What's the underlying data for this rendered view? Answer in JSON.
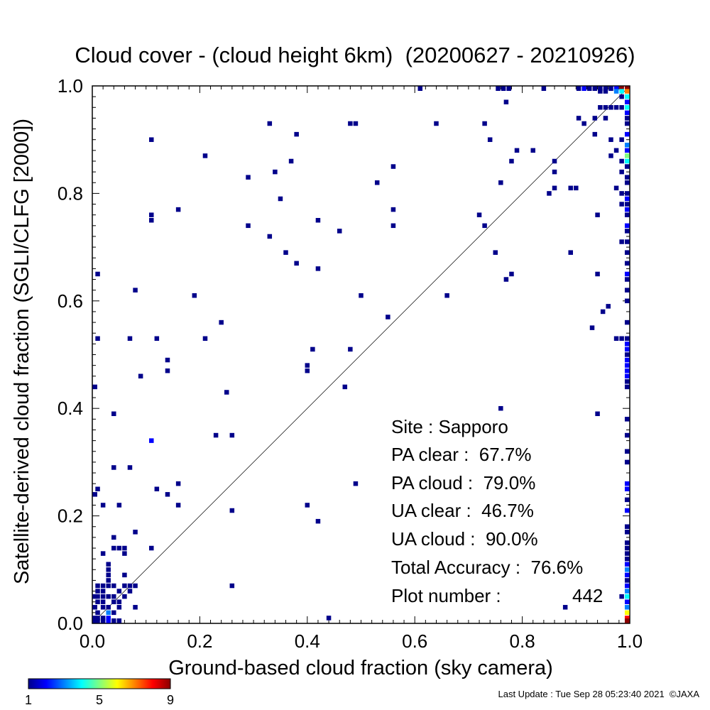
{
  "chart_data": {
    "type": "heatmap",
    "title": "Cloud cover - (cloud height 6km)  (20200627 - 20210926)",
    "xlabel": "Ground-based cloud fraction (sky camera)",
    "ylabel": "Satellite-derived cloud fraction (SGLI/CLFG [2000])",
    "xlim": [
      0.0,
      1.0
    ],
    "ylim": [
      0.0,
      1.0
    ],
    "x_ticks": [
      "0.0",
      "0.2",
      "0.4",
      "0.6",
      "0.8",
      "1.0"
    ],
    "y_ticks": [
      "0.0",
      "0.2",
      "0.4",
      "0.6",
      "0.8",
      "1.0"
    ],
    "diagonal_line": true,
    "colorbar": {
      "min": 1,
      "max": 9,
      "tick_labels": [
        "1",
        "5",
        "9"
      ],
      "colors": [
        "#00008b",
        "#0000ff",
        "#0080ff",
        "#00ffff",
        "#80ff80",
        "#ffff00",
        "#ff8000",
        "#ff0000",
        "#8b0000"
      ]
    },
    "stats": {
      "site": "Site : Sapporo",
      "pa_clear": "PA clear :  67.7%",
      "pa_cloud": "PA cloud :  79.0%",
      "ua_clear": "UA clear :  46.7%",
      "ua_cloud": "UA cloud :  90.0%",
      "total_accuracy": "Total Accuracy :  76.6%",
      "plot_number_label": "Plot number :",
      "plot_number_value": "442"
    },
    "points": [
      {
        "x": 0.61,
        "y": 1.0,
        "c": 1
      },
      {
        "x": 0.755,
        "y": 1.0,
        "c": 1
      },
      {
        "x": 0.765,
        "y": 1.0,
        "c": 1
      },
      {
        "x": 0.775,
        "y": 1.0,
        "c": 1
      },
      {
        "x": 0.84,
        "y": 1.0,
        "c": 1
      },
      {
        "x": 0.905,
        "y": 1.0,
        "c": 1
      },
      {
        "x": 0.915,
        "y": 1.0,
        "c": 2
      },
      {
        "x": 0.925,
        "y": 1.0,
        "c": 1
      },
      {
        "x": 0.935,
        "y": 1.0,
        "c": 1
      },
      {
        "x": 0.945,
        "y": 1.0,
        "c": 1
      },
      {
        "x": 0.955,
        "y": 1.0,
        "c": 1
      },
      {
        "x": 0.965,
        "y": 1.0,
        "c": 1
      },
      {
        "x": 0.975,
        "y": 1.0,
        "c": 2
      },
      {
        "x": 0.985,
        "y": 1.0,
        "c": 9
      },
      {
        "x": 0.995,
        "y": 1.0,
        "c": 9
      },
      {
        "x": 0.975,
        "y": 0.99,
        "c": 3
      },
      {
        "x": 0.985,
        "y": 0.99,
        "c": 4
      },
      {
        "x": 0.995,
        "y": 0.99,
        "c": 7
      },
      {
        "x": 0.945,
        "y": 0.99,
        "c": 1
      },
      {
        "x": 0.955,
        "y": 0.99,
        "c": 1
      },
      {
        "x": 0.995,
        "y": 0.98,
        "c": 4
      },
      {
        "x": 0.985,
        "y": 0.98,
        "c": 1
      },
      {
        "x": 0.995,
        "y": 0.97,
        "c": 2
      },
      {
        "x": 0.995,
        "y": 0.96,
        "c": 4
      },
      {
        "x": 0.985,
        "y": 0.96,
        "c": 1
      },
      {
        "x": 0.975,
        "y": 0.96,
        "c": 1
      },
      {
        "x": 0.965,
        "y": 0.96,
        "c": 1
      },
      {
        "x": 0.955,
        "y": 0.96,
        "c": 1
      },
      {
        "x": 0.945,
        "y": 0.96,
        "c": 1
      },
      {
        "x": 0.77,
        "y": 0.97,
        "c": 1
      },
      {
        "x": 0.995,
        "y": 0.95,
        "c": 2
      },
      {
        "x": 0.995,
        "y": 0.94,
        "c": 1
      },
      {
        "x": 0.905,
        "y": 0.94,
        "c": 1
      },
      {
        "x": 0.935,
        "y": 0.94,
        "c": 1
      },
      {
        "x": 0.955,
        "y": 0.94,
        "c": 1
      },
      {
        "x": 0.915,
        "y": 0.93,
        "c": 1
      },
      {
        "x": 0.995,
        "y": 0.93,
        "c": 1
      },
      {
        "x": 0.935,
        "y": 0.91,
        "c": 1
      },
      {
        "x": 0.995,
        "y": 0.91,
        "c": 2
      },
      {
        "x": 0.965,
        "y": 0.9,
        "c": 1
      },
      {
        "x": 0.985,
        "y": 0.9,
        "c": 1
      },
      {
        "x": 0.995,
        "y": 0.89,
        "c": 3
      },
      {
        "x": 0.975,
        "y": 0.88,
        "c": 1
      },
      {
        "x": 0.995,
        "y": 0.88,
        "c": 2
      },
      {
        "x": 0.965,
        "y": 0.87,
        "c": 1
      },
      {
        "x": 0.995,
        "y": 0.87,
        "c": 5
      },
      {
        "x": 0.995,
        "y": 0.86,
        "c": 4
      },
      {
        "x": 0.985,
        "y": 0.86,
        "c": 1
      },
      {
        "x": 0.995,
        "y": 0.85,
        "c": 1
      },
      {
        "x": 0.985,
        "y": 0.84,
        "c": 1
      },
      {
        "x": 0.995,
        "y": 0.83,
        "c": 1
      },
      {
        "x": 0.995,
        "y": 0.82,
        "c": 1
      },
      {
        "x": 0.975,
        "y": 0.81,
        "c": 1
      },
      {
        "x": 0.985,
        "y": 0.8,
        "c": 1
      },
      {
        "x": 0.995,
        "y": 0.8,
        "c": 1
      },
      {
        "x": 0.995,
        "y": 0.79,
        "c": 2
      },
      {
        "x": 0.995,
        "y": 0.78,
        "c": 1
      },
      {
        "x": 0.985,
        "y": 0.78,
        "c": 1
      },
      {
        "x": 0.995,
        "y": 0.77,
        "c": 2
      },
      {
        "x": 0.995,
        "y": 0.76,
        "c": 1
      },
      {
        "x": 0.995,
        "y": 0.74,
        "c": 2
      },
      {
        "x": 0.995,
        "y": 0.73,
        "c": 1
      },
      {
        "x": 0.995,
        "y": 0.71,
        "c": 1
      },
      {
        "x": 0.985,
        "y": 0.71,
        "c": 1
      },
      {
        "x": 0.995,
        "y": 0.69,
        "c": 1
      },
      {
        "x": 0.995,
        "y": 0.67,
        "c": 1
      },
      {
        "x": 0.995,
        "y": 0.65,
        "c": 2
      },
      {
        "x": 0.995,
        "y": 0.64,
        "c": 1
      },
      {
        "x": 0.995,
        "y": 0.62,
        "c": 1
      },
      {
        "x": 0.995,
        "y": 0.6,
        "c": 1
      },
      {
        "x": 0.995,
        "y": 0.56,
        "c": 1
      },
      {
        "x": 0.995,
        "y": 0.53,
        "c": 1
      },
      {
        "x": 0.985,
        "y": 0.53,
        "c": 1
      },
      {
        "x": 0.975,
        "y": 0.53,
        "c": 1
      },
      {
        "x": 0.995,
        "y": 0.52,
        "c": 2
      },
      {
        "x": 0.995,
        "y": 0.51,
        "c": 2
      },
      {
        "x": 0.995,
        "y": 0.5,
        "c": 1
      },
      {
        "x": 0.995,
        "y": 0.49,
        "c": 2
      },
      {
        "x": 0.995,
        "y": 0.48,
        "c": 2
      },
      {
        "x": 0.995,
        "y": 0.47,
        "c": 2
      },
      {
        "x": 0.995,
        "y": 0.46,
        "c": 2
      },
      {
        "x": 0.995,
        "y": 0.45,
        "c": 1
      },
      {
        "x": 0.995,
        "y": 0.44,
        "c": 1
      },
      {
        "x": 0.995,
        "y": 0.38,
        "c": 1
      },
      {
        "x": 0.995,
        "y": 0.35,
        "c": 1
      },
      {
        "x": 0.995,
        "y": 0.32,
        "c": 1
      },
      {
        "x": 0.995,
        "y": 0.3,
        "c": 1
      },
      {
        "x": 0.995,
        "y": 0.26,
        "c": 2
      },
      {
        "x": 0.995,
        "y": 0.25,
        "c": 2
      },
      {
        "x": 0.995,
        "y": 0.23,
        "c": 1
      },
      {
        "x": 0.995,
        "y": 0.21,
        "c": 2
      },
      {
        "x": 0.995,
        "y": 0.18,
        "c": 1
      },
      {
        "x": 0.995,
        "y": 0.17,
        "c": 1
      },
      {
        "x": 0.995,
        "y": 0.15,
        "c": 1
      },
      {
        "x": 0.995,
        "y": 0.14,
        "c": 1
      },
      {
        "x": 0.995,
        "y": 0.13,
        "c": 1
      },
      {
        "x": 0.995,
        "y": 0.12,
        "c": 1
      },
      {
        "x": 0.995,
        "y": 0.11,
        "c": 2
      },
      {
        "x": 0.995,
        "y": 0.1,
        "c": 3
      },
      {
        "x": 0.995,
        "y": 0.09,
        "c": 2
      },
      {
        "x": 0.995,
        "y": 0.08,
        "c": 1
      },
      {
        "x": 0.995,
        "y": 0.07,
        "c": 2
      },
      {
        "x": 0.995,
        "y": 0.06,
        "c": 3
      },
      {
        "x": 0.995,
        "y": 0.05,
        "c": 4
      },
      {
        "x": 0.995,
        "y": 0.04,
        "c": 2
      },
      {
        "x": 0.995,
        "y": 0.03,
        "c": 3
      },
      {
        "x": 0.995,
        "y": 0.02,
        "c": 6
      },
      {
        "x": 0.995,
        "y": 0.01,
        "c": 8
      },
      {
        "x": 0.995,
        "y": 0.0,
        "c": 9
      },
      {
        "x": 0.985,
        "y": 0.05,
        "c": 1
      },
      {
        "x": 0.74,
        "y": 0.9,
        "c": 1
      },
      {
        "x": 0.64,
        "y": 0.93,
        "c": 1
      },
      {
        "x": 0.73,
        "y": 0.93,
        "c": 1
      },
      {
        "x": 0.48,
        "y": 0.93,
        "c": 1
      },
      {
        "x": 0.49,
        "y": 0.93,
        "c": 1
      },
      {
        "x": 0.33,
        "y": 0.93,
        "c": 1
      },
      {
        "x": 0.38,
        "y": 0.91,
        "c": 1
      },
      {
        "x": 0.11,
        "y": 0.9,
        "c": 1
      },
      {
        "x": 0.21,
        "y": 0.87,
        "c": 1
      },
      {
        "x": 0.79,
        "y": 0.88,
        "c": 1
      },
      {
        "x": 0.82,
        "y": 0.88,
        "c": 1
      },
      {
        "x": 0.78,
        "y": 0.86,
        "c": 1
      },
      {
        "x": 0.37,
        "y": 0.86,
        "c": 1
      },
      {
        "x": 0.34,
        "y": 0.84,
        "c": 1
      },
      {
        "x": 0.56,
        "y": 0.85,
        "c": 1
      },
      {
        "x": 0.29,
        "y": 0.83,
        "c": 1
      },
      {
        "x": 0.53,
        "y": 0.82,
        "c": 1
      },
      {
        "x": 0.76,
        "y": 0.82,
        "c": 1
      },
      {
        "x": 0.86,
        "y": 0.86,
        "c": 1
      },
      {
        "x": 0.86,
        "y": 0.84,
        "c": 1
      },
      {
        "x": 0.86,
        "y": 0.81,
        "c": 1
      },
      {
        "x": 0.85,
        "y": 0.8,
        "c": 1
      },
      {
        "x": 0.89,
        "y": 0.81,
        "c": 1
      },
      {
        "x": 0.9,
        "y": 0.81,
        "c": 1
      },
      {
        "x": 0.35,
        "y": 0.79,
        "c": 1
      },
      {
        "x": 0.56,
        "y": 0.77,
        "c": 1
      },
      {
        "x": 0.16,
        "y": 0.77,
        "c": 1
      },
      {
        "x": 0.11,
        "y": 0.76,
        "c": 1
      },
      {
        "x": 0.11,
        "y": 0.75,
        "c": 1
      },
      {
        "x": 0.72,
        "y": 0.76,
        "c": 1
      },
      {
        "x": 0.94,
        "y": 0.76,
        "c": 1
      },
      {
        "x": 0.42,
        "y": 0.75,
        "c": 1
      },
      {
        "x": 0.29,
        "y": 0.74,
        "c": 1
      },
      {
        "x": 0.56,
        "y": 0.74,
        "c": 1
      },
      {
        "x": 0.73,
        "y": 0.74,
        "c": 1
      },
      {
        "x": 0.46,
        "y": 0.73,
        "c": 1
      },
      {
        "x": 0.33,
        "y": 0.72,
        "c": 1
      },
      {
        "x": 0.36,
        "y": 0.69,
        "c": 1
      },
      {
        "x": 0.75,
        "y": 0.69,
        "c": 1
      },
      {
        "x": 0.89,
        "y": 0.69,
        "c": 1
      },
      {
        "x": 0.38,
        "y": 0.67,
        "c": 1
      },
      {
        "x": 0.42,
        "y": 0.66,
        "c": 1
      },
      {
        "x": 0.78,
        "y": 0.65,
        "c": 1
      },
      {
        "x": 0.94,
        "y": 0.65,
        "c": 1
      },
      {
        "x": 0.77,
        "y": 0.64,
        "c": 1
      },
      {
        "x": 0.01,
        "y": 0.65,
        "c": 1
      },
      {
        "x": 0.08,
        "y": 0.62,
        "c": 1
      },
      {
        "x": 0.19,
        "y": 0.61,
        "c": 1
      },
      {
        "x": 0.5,
        "y": 0.61,
        "c": 1
      },
      {
        "x": 0.66,
        "y": 0.61,
        "c": 1
      },
      {
        "x": 0.96,
        "y": 0.59,
        "c": 1
      },
      {
        "x": 0.95,
        "y": 0.58,
        "c": 1
      },
      {
        "x": 0.55,
        "y": 0.57,
        "c": 1
      },
      {
        "x": 0.24,
        "y": 0.56,
        "c": 1
      },
      {
        "x": 0.93,
        "y": 0.55,
        "c": 1
      },
      {
        "x": 0.01,
        "y": 0.53,
        "c": 1
      },
      {
        "x": 0.07,
        "y": 0.53,
        "c": 1
      },
      {
        "x": 0.12,
        "y": 0.53,
        "c": 1
      },
      {
        "x": 0.21,
        "y": 0.53,
        "c": 1
      },
      {
        "x": 0.41,
        "y": 0.51,
        "c": 1
      },
      {
        "x": 0.48,
        "y": 0.51,
        "c": 1
      },
      {
        "x": 0.14,
        "y": 0.49,
        "c": 1
      },
      {
        "x": 0.14,
        "y": 0.47,
        "c": 1
      },
      {
        "x": 0.4,
        "y": 0.48,
        "c": 1
      },
      {
        "x": 0.4,
        "y": 0.47,
        "c": 1
      },
      {
        "x": 0.09,
        "y": 0.46,
        "c": 1
      },
      {
        "x": 0.0,
        "y": 0.44,
        "c": 1
      },
      {
        "x": 0.47,
        "y": 0.44,
        "c": 1
      },
      {
        "x": 0.25,
        "y": 0.43,
        "c": 1
      },
      {
        "x": 0.76,
        "y": 0.4,
        "c": 1
      },
      {
        "x": 0.04,
        "y": 0.39,
        "c": 1
      },
      {
        "x": 0.94,
        "y": 0.39,
        "c": 1
      },
      {
        "x": 0.23,
        "y": 0.35,
        "c": 1
      },
      {
        "x": 0.26,
        "y": 0.35,
        "c": 1
      },
      {
        "x": 0.11,
        "y": 0.34,
        "c": 2
      },
      {
        "x": 0.04,
        "y": 0.29,
        "c": 1
      },
      {
        "x": 0.07,
        "y": 0.29,
        "c": 1
      },
      {
        "x": 0.49,
        "y": 0.26,
        "c": 1
      },
      {
        "x": 0.16,
        "y": 0.26,
        "c": 1
      },
      {
        "x": 0.01,
        "y": 0.25,
        "c": 1
      },
      {
        "x": 0.12,
        "y": 0.25,
        "c": 1
      },
      {
        "x": 0.0,
        "y": 0.24,
        "c": 1
      },
      {
        "x": 0.14,
        "y": 0.24,
        "c": 1
      },
      {
        "x": 0.02,
        "y": 0.22,
        "c": 1
      },
      {
        "x": 0.05,
        "y": 0.22,
        "c": 1
      },
      {
        "x": 0.16,
        "y": 0.22,
        "c": 1
      },
      {
        "x": 0.4,
        "y": 0.22,
        "c": 1
      },
      {
        "x": 0.26,
        "y": 0.21,
        "c": 1
      },
      {
        "x": 0.42,
        "y": 0.19,
        "c": 1
      },
      {
        "x": 0.08,
        "y": 0.17,
        "c": 1
      },
      {
        "x": 0.04,
        "y": 0.16,
        "c": 1
      },
      {
        "x": 0.04,
        "y": 0.14,
        "c": 1
      },
      {
        "x": 0.05,
        "y": 0.14,
        "c": 1
      },
      {
        "x": 0.06,
        "y": 0.14,
        "c": 1
      },
      {
        "x": 0.11,
        "y": 0.14,
        "c": 1
      },
      {
        "x": 0.02,
        "y": 0.13,
        "c": 1
      },
      {
        "x": 0.06,
        "y": 0.13,
        "c": 1
      },
      {
        "x": 0.03,
        "y": 0.11,
        "c": 1
      },
      {
        "x": 0.03,
        "y": 0.1,
        "c": 1
      },
      {
        "x": 0.03,
        "y": 0.09,
        "c": 1
      },
      {
        "x": 0.06,
        "y": 0.09,
        "c": 1
      },
      {
        "x": 0.03,
        "y": 0.08,
        "c": 1
      },
      {
        "x": 0.01,
        "y": 0.07,
        "c": 1
      },
      {
        "x": 0.02,
        "y": 0.07,
        "c": 1
      },
      {
        "x": 0.03,
        "y": 0.07,
        "c": 1
      },
      {
        "x": 0.04,
        "y": 0.07,
        "c": 1
      },
      {
        "x": 0.06,
        "y": 0.07,
        "c": 1
      },
      {
        "x": 0.07,
        "y": 0.07,
        "c": 1
      },
      {
        "x": 0.08,
        "y": 0.07,
        "c": 1
      },
      {
        "x": 0.26,
        "y": 0.07,
        "c": 1
      },
      {
        "x": 0.01,
        "y": 0.06,
        "c": 1
      },
      {
        "x": 0.02,
        "y": 0.06,
        "c": 1
      },
      {
        "x": 0.05,
        "y": 0.06,
        "c": 1
      },
      {
        "x": 0.07,
        "y": 0.06,
        "c": 1
      },
      {
        "x": 0.0,
        "y": 0.05,
        "c": 1
      },
      {
        "x": 0.01,
        "y": 0.05,
        "c": 1
      },
      {
        "x": 0.02,
        "y": 0.05,
        "c": 1
      },
      {
        "x": 0.03,
        "y": 0.05,
        "c": 1
      },
      {
        "x": 0.04,
        "y": 0.05,
        "c": 1
      },
      {
        "x": 0.06,
        "y": 0.05,
        "c": 1
      },
      {
        "x": 0.01,
        "y": 0.04,
        "c": 1
      },
      {
        "x": 0.02,
        "y": 0.04,
        "c": 1
      },
      {
        "x": 0.04,
        "y": 0.04,
        "c": 1
      },
      {
        "x": 0.05,
        "y": 0.04,
        "c": 1
      },
      {
        "x": 0.0,
        "y": 0.03,
        "c": 1
      },
      {
        "x": 0.02,
        "y": 0.03,
        "c": 1
      },
      {
        "x": 0.03,
        "y": 0.03,
        "c": 1
      },
      {
        "x": 0.05,
        "y": 0.03,
        "c": 1
      },
      {
        "x": 0.08,
        "y": 0.03,
        "c": 1
      },
      {
        "x": 0.88,
        "y": 0.03,
        "c": 1
      },
      {
        "x": 0.01,
        "y": 0.02,
        "c": 1
      },
      {
        "x": 0.03,
        "y": 0.02,
        "c": 3
      },
      {
        "x": 0.04,
        "y": 0.02,
        "c": 1
      },
      {
        "x": 0.0,
        "y": 0.01,
        "c": 1
      },
      {
        "x": 0.01,
        "y": 0.01,
        "c": 1
      },
      {
        "x": 0.02,
        "y": 0.01,
        "c": 1
      },
      {
        "x": 0.03,
        "y": 0.01,
        "c": 2
      },
      {
        "x": 0.44,
        "y": 0.01,
        "c": 1
      },
      {
        "x": 0.0,
        "y": 0.0,
        "c": 1
      },
      {
        "x": 0.01,
        "y": 0.0,
        "c": 1
      },
      {
        "x": 0.02,
        "y": 0.0,
        "c": 1
      },
      {
        "x": 0.03,
        "y": 0.0,
        "c": 2
      },
      {
        "x": 0.04,
        "y": 0.0,
        "c": 1
      },
      {
        "x": 0.05,
        "y": 0.0,
        "c": 1
      }
    ]
  },
  "footer": {
    "last_update": "Last Update : Tue Sep 28 05:23:40 2021  ©JAXA"
  }
}
